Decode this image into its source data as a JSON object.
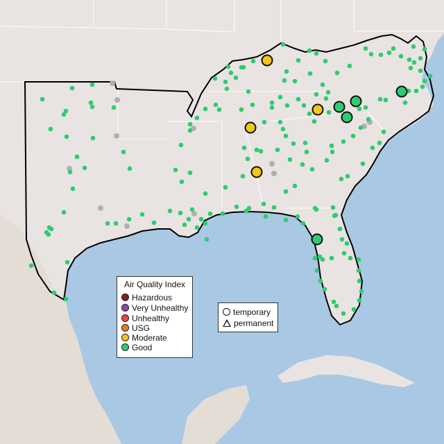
{
  "map": {
    "colors": {
      "water": "#a9c8e3",
      "land": "#e9e4e1",
      "land_mexico": "#e4ddd6",
      "region_border": "#000000",
      "state_line": "#ffffff",
      "good": "#2ecc71",
      "moderate": "#f5c518",
      "usg": "#e67e22",
      "unhealthy": "#e74c3c",
      "very_unhealthy": "#8e44ad",
      "hazardous": "#7b241c",
      "no_data": "#b0b0b0"
    },
    "large_markers": [
      {
        "category": "moderate",
        "shape": "circle"
      },
      {
        "category": "moderate",
        "shape": "circle"
      },
      {
        "category": "moderate",
        "shape": "circle"
      },
      {
        "category": "moderate",
        "shape": "circle"
      },
      {
        "category": "good",
        "shape": "circle"
      },
      {
        "category": "good",
        "shape": "circle"
      },
      {
        "category": "good",
        "shape": "circle"
      },
      {
        "category": "good",
        "shape": "circle"
      },
      {
        "category": "good",
        "shape": "circle"
      }
    ]
  },
  "legend": {
    "title": "Air Quality Index",
    "items": [
      {
        "label": "Hazardous",
        "color": "#7b241c"
      },
      {
        "label": "Very Unhealthy",
        "color": "#8e44ad"
      },
      {
        "label": "Unhealthy",
        "color": "#e74c3c"
      },
      {
        "label": "USG",
        "color": "#e67e22"
      },
      {
        "label": "Moderate",
        "color": "#f5c518"
      },
      {
        "label": "Good",
        "color": "#2ecc71"
      }
    ]
  },
  "type_legend": {
    "items": [
      {
        "label": "temporary",
        "icon": "circle-outline-icon"
      },
      {
        "label": "permanent",
        "icon": "triangle-outline-icon"
      }
    ]
  }
}
